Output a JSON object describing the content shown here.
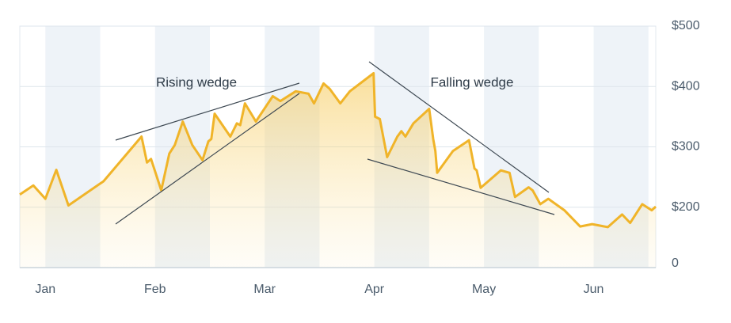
{
  "chart_data": {
    "type": "area",
    "color": "#f0b429",
    "xlim": [
      -7,
      167
    ],
    "xticks": [
      {
        "value": 0,
        "label": "Jan"
      },
      {
        "value": 30,
        "label": "Feb"
      },
      {
        "value": 60,
        "label": "Mar"
      },
      {
        "value": 90,
        "label": "Apr"
      },
      {
        "value": 120,
        "label": "May"
      },
      {
        "value": 150,
        "label": "Jun"
      }
    ],
    "ylim": [
      100,
      500
    ],
    "yticks": [
      {
        "value": 200,
        "label": "$200"
      },
      {
        "value": 300,
        "label": "$300"
      },
      {
        "value": 400,
        "label": "$400"
      },
      {
        "value": 500,
        "label": "$500"
      }
    ],
    "y_axis_bottom_label": "0",
    "grid": true,
    "annotations": [
      "Rising wedge",
      "Falling wedge"
    ],
    "x": [
      -7,
      -3.3,
      0,
      3,
      6.3,
      15.9,
      26.3,
      27.8,
      28.9,
      31.7,
      33.9,
      35.4,
      37.6,
      40.2,
      43,
      44.6,
      45.4,
      46.3,
      50.6,
      52.4,
      53.3,
      54.6,
      57.6,
      62.2,
      64.3,
      68.5,
      72,
      73.5,
      76.1,
      77.8,
      80.7,
      83.3,
      89.8,
      90.2,
      91.5,
      93.5,
      96.3,
      97.4,
      98.5,
      100.7,
      105,
      106.1,
      106.7,
      107.2,
      111.5,
      115.9,
      117.4,
      118,
      119.1,
      124.6,
      127,
      128.5,
      132.2,
      133.3,
      135.4,
      137.6,
      142,
      146.3,
      149.6,
      153.9,
      157.8,
      160,
      163.3,
      165.9,
      167
    ],
    "values": [
      221,
      236,
      214,
      262,
      203,
      243,
      317,
      274,
      280,
      228,
      289,
      303,
      342,
      303,
      278,
      309,
      313,
      355,
      317,
      339,
      336,
      372,
      342,
      384,
      376,
      392,
      388,
      372,
      405,
      396,
      372,
      392,
      422,
      350,
      346,
      283,
      317,
      326,
      317,
      339,
      363,
      313,
      293,
      257,
      293,
      311,
      264,
      261,
      232,
      261,
      257,
      217,
      233,
      228,
      205,
      214,
      195,
      168,
      172,
      167,
      188,
      174,
      205,
      195,
      201
    ]
  }
}
